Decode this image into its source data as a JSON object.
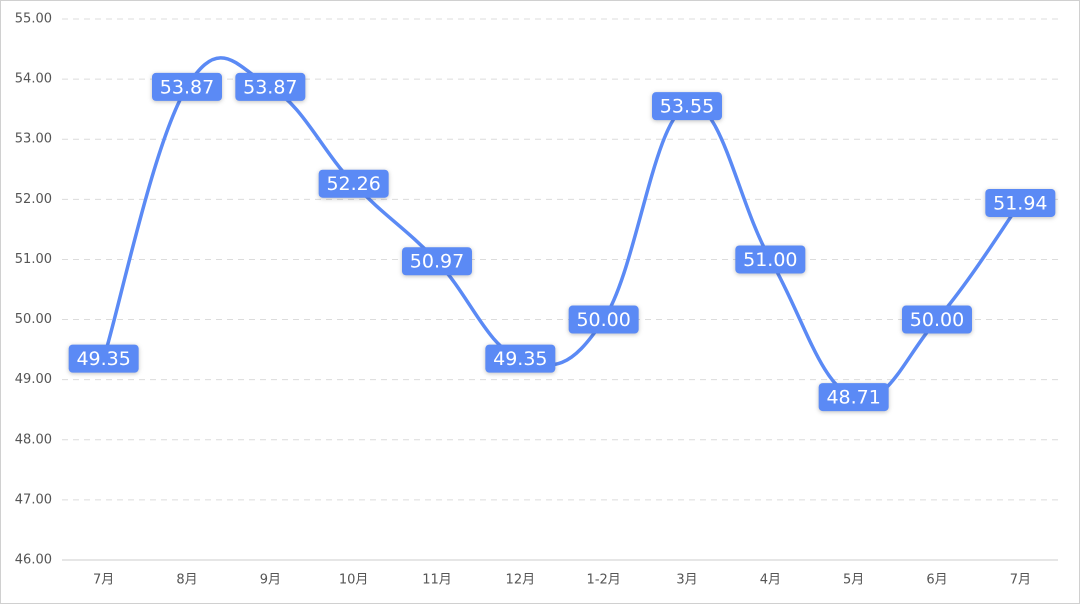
{
  "chart_data": {
    "type": "line",
    "categories": [
      "7月",
      "8月",
      "9月",
      "10月",
      "11月",
      "12月",
      "1-2月",
      "3月",
      "4月",
      "5月",
      "6月",
      "7月"
    ],
    "series": [
      {
        "color": "#5b8af5",
        "values": [
          49.35,
          53.87,
          53.87,
          52.26,
          50.97,
          49.35,
          50,
          53.55,
          51,
          48.71,
          50,
          51.94
        ],
        "value_labels": [
          "49.35",
          "53.87",
          "53.87",
          "52.26",
          "50.97",
          "49.35",
          "50.00",
          "53.55",
          "51.00",
          "48.71",
          "50.00",
          "51.94"
        ]
      }
    ],
    "ylim": [
      46,
      55
    ],
    "yticks": [
      {
        "value": 46,
        "label": "46.00"
      },
      {
        "value": 47,
        "label": "47.00"
      },
      {
        "value": 48,
        "label": "48.00"
      },
      {
        "value": 49,
        "label": "49.00"
      },
      {
        "value": 50,
        "label": "50.00"
      },
      {
        "value": 51,
        "label": "51.00"
      },
      {
        "value": 52,
        "label": "52.00"
      },
      {
        "value": 53,
        "label": "53.00"
      },
      {
        "value": 54,
        "label": "54.00"
      },
      {
        "value": 55,
        "label": "55.00"
      }
    ],
    "grid": true
  }
}
